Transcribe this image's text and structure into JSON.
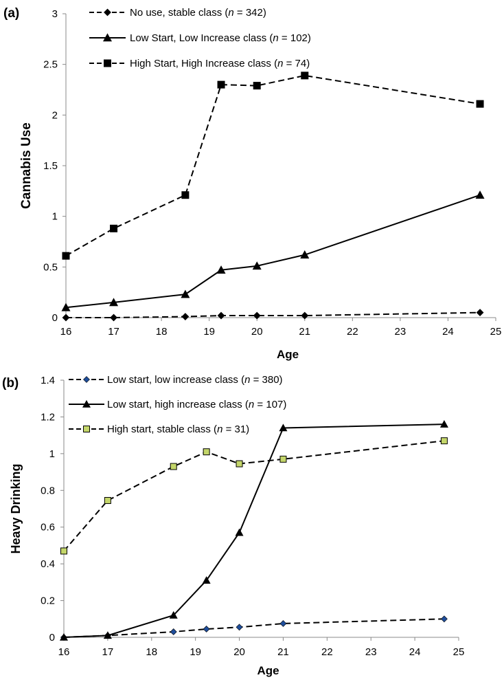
{
  "chart_data": [
    {
      "panel_label": "(a)",
      "type": "line",
      "xlabel": "Age",
      "ylabel": "Cannabis Use",
      "xlim": [
        16,
        25
      ],
      "ylim": [
        0,
        3
      ],
      "xticks": [
        16,
        17,
        18,
        19,
        20,
        21,
        22,
        23,
        24,
        25
      ],
      "yticks": [
        0,
        0.5,
        1,
        1.5,
        2,
        2.5,
        3
      ],
      "grid": false,
      "legend_position": "top-left",
      "series": [
        {
          "name_pre": "No use, stable class (",
          "name_n": "n",
          "name_post": " = 342)",
          "line": "dashed",
          "marker": "diamond",
          "marker_color": "#000000",
          "x": [
            16,
            17,
            18.5,
            19.25,
            20,
            21,
            24.67
          ],
          "y": [
            0.0,
            0.0,
            0.01,
            0.02,
            0.02,
            0.02,
            0.05
          ]
        },
        {
          "name_pre": "Low Start, Low Increase class (",
          "name_n": "n",
          "name_post": " = 102)",
          "line": "solid",
          "marker": "triangle",
          "marker_color": "#000000",
          "x": [
            16,
            17,
            18.5,
            19.25,
            20,
            21,
            24.67
          ],
          "y": [
            0.1,
            0.15,
            0.23,
            0.47,
            0.51,
            0.62,
            1.21
          ]
        },
        {
          "name_pre": "High Start, High Increase class (",
          "name_n": "n",
          "name_post": " = 74)",
          "line": "dashed",
          "marker": "square",
          "marker_color": "#000000",
          "x": [
            16,
            17,
            18.5,
            19.25,
            20,
            21,
            24.67
          ],
          "y": [
            0.61,
            0.88,
            1.21,
            2.3,
            2.29,
            2.39,
            2.11
          ]
        }
      ]
    },
    {
      "panel_label": "(b)",
      "type": "line",
      "xlabel": "Age",
      "ylabel": "Heavy Drinking",
      "xlim": [
        16,
        25
      ],
      "ylim": [
        0,
        1.4
      ],
      "xticks": [
        16,
        17,
        18,
        19,
        20,
        21,
        22,
        23,
        24,
        25
      ],
      "yticks": [
        0,
        0.2,
        0.4,
        0.6,
        0.8,
        1,
        1.2,
        1.4
      ],
      "grid": false,
      "legend_position": "top-left",
      "series": [
        {
          "name_pre": "Low start, low increase class (",
          "name_n": "n",
          "name_post": " = 380)",
          "line": "dashed",
          "marker": "diamond",
          "marker_color": "#1f4e9b",
          "x": [
            16,
            17,
            18.5,
            19.25,
            20,
            21,
            24.67
          ],
          "y": [
            0.0,
            0.01,
            0.03,
            0.045,
            0.055,
            0.075,
            0.1
          ]
        },
        {
          "name_pre": "Low start, high increase class (",
          "name_n": "n",
          "name_post": " = 107)",
          "line": "solid",
          "marker": "triangle",
          "marker_color": "#000000",
          "x": [
            16,
            17,
            18.5,
            19.25,
            20,
            21,
            24.67
          ],
          "y": [
            0.0,
            0.01,
            0.12,
            0.31,
            0.57,
            1.14,
            1.16
          ]
        },
        {
          "name_pre": "High start, stable class (",
          "name_n": "n",
          "name_post": " = 31)",
          "line": "dashed",
          "marker": "square",
          "marker_color": "#c4d66a",
          "x": [
            16,
            17,
            18.5,
            19.25,
            20,
            21,
            24.67
          ],
          "y": [
            0.47,
            0.745,
            0.93,
            1.01,
            0.945,
            0.97,
            1.07
          ]
        }
      ]
    }
  ]
}
